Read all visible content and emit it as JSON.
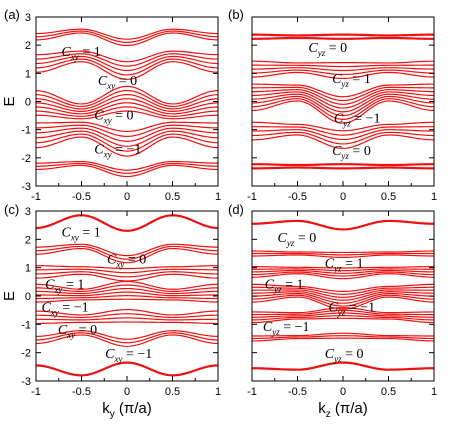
{
  "chart_data": [
    {
      "id": "a",
      "type": "line",
      "panel_label": "(a)",
      "xlabel": "",
      "ylabel": "E",
      "xlim": [
        -1,
        1
      ],
      "ylim": [
        -3,
        3
      ],
      "xticks": [
        "-1",
        "-0.5",
        "0",
        "0.5",
        "1"
      ],
      "yticks": [
        "3",
        "2",
        "1",
        "0",
        "-1",
        "-2",
        "-3"
      ],
      "series_color": "#ee1111",
      "bands": [
        {
          "x": [
            -1,
            -0.5,
            0,
            0.5,
            1
          ],
          "y": [
            2.3,
            2.5,
            2.1,
            2.5,
            2.3
          ],
          "width": 0.18,
          "lines": 3
        },
        {
          "x": [
            -1,
            -0.5,
            0,
            0.5,
            1
          ],
          "y": [
            1.35,
            1.6,
            1.1,
            1.6,
            1.35
          ],
          "width": 0.5,
          "lines": 5
        },
        {
          "x": [
            -1,
            -0.5,
            0,
            0.5,
            1
          ],
          "y": [
            -0.05,
            -0.35,
            0.1,
            -0.35,
            -0.05
          ],
          "width": 0.7,
          "lines": 7
        },
        {
          "x": [
            -1,
            -0.5,
            0,
            0.5,
            1
          ],
          "y": [
            -1.2,
            -1.0,
            -1.5,
            -1.0,
            -1.2
          ],
          "width": 0.7,
          "lines": 6
        },
        {
          "x": [
            -1,
            -0.5,
            0,
            0.5,
            1
          ],
          "y": [
            -2.3,
            -2.2,
            -2.55,
            -2.2,
            -2.3
          ],
          "width": 0.18,
          "lines": 3
        }
      ],
      "annotations": [
        {
          "sym": "C",
          "sub": "xy",
          "op": " = ",
          "val": "1",
          "x": -0.72,
          "y": 1.75
        },
        {
          "sym": "C",
          "sub": "xy",
          "op": " = ",
          "val": "0",
          "x": -0.32,
          "y": 0.72
        },
        {
          "sym": "C",
          "sub": "xy",
          "op": " = ",
          "val": "0",
          "x": -0.36,
          "y": -0.5
        },
        {
          "sym": "C",
          "sub": "xy",
          "op": " = ",
          "val": "−1",
          "x": -0.36,
          "y": -1.7
        }
      ]
    },
    {
      "id": "b",
      "type": "line",
      "panel_label": "(b)",
      "xlabel": "",
      "ylabel": "",
      "xlim": [
        -1,
        1
      ],
      "ylim": [
        -3,
        3
      ],
      "xticks": [
        "-1",
        "-0.5",
        "0",
        "0.5",
        "1"
      ],
      "yticks": [],
      "series_color": "#ee1111",
      "bands": [
        {
          "x": [
            -1,
            -0.5,
            0,
            0.5,
            1
          ],
          "y": [
            2.3,
            2.3,
            2.3,
            2.3,
            2.3
          ],
          "width": 0.12,
          "lines": 2
        },
        {
          "x": [
            -1,
            -0.5,
            0,
            0.5,
            1
          ],
          "y": [
            1.15,
            1.2,
            1.1,
            1.2,
            1.15
          ],
          "width": 0.45,
          "lines": 5
        },
        {
          "x": [
            -1,
            -0.5,
            0,
            0.5,
            1
          ],
          "y": [
            0.15,
            0.3,
            -0.3,
            0.3,
            0.15
          ],
          "width": 0.75,
          "lines": 8
        },
        {
          "x": [
            -1,
            -0.5,
            0,
            0.5,
            1
          ],
          "y": [
            -1.05,
            -1.0,
            -1.35,
            -1.0,
            -1.05
          ],
          "width": 0.5,
          "lines": 5
        },
        {
          "x": [
            -1,
            -0.5,
            0,
            0.5,
            1
          ],
          "y": [
            -2.3,
            -2.3,
            -2.3,
            -2.3,
            -2.3
          ],
          "width": 0.12,
          "lines": 2
        }
      ],
      "annotations": [
        {
          "sym": "C",
          "sub": "yz",
          "op": " = ",
          "val": "0",
          "x": -0.38,
          "y": 1.9
        },
        {
          "sym": "C",
          "sub": "yz",
          "op": " = ",
          "val": "1",
          "x": -0.12,
          "y": 0.8
        },
        {
          "sym": "C",
          "sub": "yz",
          "op": " = ",
          "val": "−1",
          "x": -0.1,
          "y": -0.6
        },
        {
          "sym": "C",
          "sub": "yz",
          "op": " = ",
          "val": "0",
          "x": -0.12,
          "y": -1.75
        }
      ]
    },
    {
      "id": "c",
      "type": "line",
      "panel_label": "(c)",
      "xlabel": "k_y (π/a)",
      "ylabel": "E",
      "xlim": [
        -1,
        1
      ],
      "ylim": [
        -3,
        3
      ],
      "xticks": [
        "-1",
        "-0.5",
        "0",
        "0.5",
        "1"
      ],
      "yticks": [
        "3",
        "2",
        "1",
        "0",
        "-1",
        "-2",
        "-3"
      ],
      "series_color": "#ee1111",
      "bands": [
        {
          "x": [
            -1,
            -0.5,
            0,
            0.5,
            1
          ],
          "y": [
            2.4,
            2.85,
            2.3,
            2.85,
            2.4
          ],
          "width": 0.06,
          "lines": 1
        },
        {
          "x": [
            -1,
            -0.5,
            0,
            0.5,
            1
          ],
          "y": [
            1.6,
            1.75,
            1.3,
            1.75,
            1.6
          ],
          "width": 0.2,
          "lines": 3
        },
        {
          "x": [
            -1,
            -0.5,
            0,
            0.5,
            1
          ],
          "y": [
            0.85,
            0.9,
            0.75,
            0.9,
            0.85
          ],
          "width": 0.35,
          "lines": 4
        },
        {
          "x": [
            -1,
            -0.5,
            0,
            0.5,
            1
          ],
          "y": [
            0.1,
            0.05,
            0.2,
            0.05,
            0.1
          ],
          "width": 0.5,
          "lines": 6
        },
        {
          "x": [
            -1,
            -0.5,
            0,
            0.5,
            1
          ],
          "y": [
            -0.75,
            -0.8,
            -0.7,
            -0.8,
            -0.75
          ],
          "width": 0.35,
          "lines": 4
        },
        {
          "x": [
            -1,
            -0.5,
            0,
            0.5,
            1
          ],
          "y": [
            -1.55,
            -1.3,
            -1.65,
            -1.3,
            -1.55
          ],
          "width": 0.2,
          "lines": 3
        },
        {
          "x": [
            -1,
            -0.5,
            0,
            0.5,
            1
          ],
          "y": [
            -2.45,
            -2.8,
            -2.35,
            -2.8,
            -2.45
          ],
          "width": 0.06,
          "lines": 1
        }
      ],
      "annotations": [
        {
          "sym": "C",
          "sub": "xy",
          "op": " = ",
          "val": "1",
          "x": -0.72,
          "y": 2.25
        },
        {
          "sym": "C",
          "sub": "xy",
          "op": " = ",
          "val": "0",
          "x": -0.22,
          "y": 1.28
        },
        {
          "sym": "C",
          "sub": "xy",
          "op": " = ",
          "val": "1",
          "x": -0.9,
          "y": 0.4
        },
        {
          "sym": "C",
          "sub": "xy",
          "op": " = ",
          "val": "−1",
          "x": -0.94,
          "y": -0.4
        },
        {
          "sym": "C",
          "sub": "xy",
          "op": " = ",
          "val": "0",
          "x": -0.76,
          "y": -1.2
        },
        {
          "sym": "C",
          "sub": "xy",
          "op": " = ",
          "val": "−1",
          "x": -0.24,
          "y": -2.05
        }
      ]
    },
    {
      "id": "d",
      "type": "line",
      "panel_label": "(d)",
      "xlabel": "k_z (π/a)",
      "ylabel": "",
      "xlim": [
        -1,
        1
      ],
      "ylim": [
        -3,
        3
      ],
      "xticks": [
        "-1",
        "-0.5",
        "0",
        "0.5",
        "1"
      ],
      "yticks": [],
      "series_color": "#ee1111",
      "bands": [
        {
          "x": [
            -1,
            -0.5,
            0,
            0.5,
            1
          ],
          "y": [
            2.55,
            2.65,
            2.35,
            2.65,
            2.55
          ],
          "width": 0.06,
          "lines": 1
        },
        {
          "x": [
            -1,
            -0.5,
            0,
            0.5,
            1
          ],
          "y": [
            1.5,
            1.5,
            1.45,
            1.5,
            1.5
          ],
          "width": 0.14,
          "lines": 3
        },
        {
          "x": [
            -1,
            -0.5,
            0,
            0.5,
            1
          ],
          "y": [
            0.85,
            0.9,
            0.8,
            0.9,
            0.85
          ],
          "width": 0.3,
          "lines": 5
        },
        {
          "x": [
            -1,
            -0.5,
            0,
            0.5,
            1
          ],
          "y": [
            0.1,
            0.15,
            -0.15,
            0.15,
            0.1
          ],
          "width": 0.5,
          "lines": 7
        },
        {
          "x": [
            -1,
            -0.5,
            0,
            0.5,
            1
          ],
          "y": [
            -0.75,
            -0.7,
            -0.6,
            -0.7,
            -0.75
          ],
          "width": 0.3,
          "lines": 5
        },
        {
          "x": [
            -1,
            -0.5,
            0,
            0.5,
            1
          ],
          "y": [
            -1.5,
            -1.45,
            -1.4,
            -1.45,
            -1.5
          ],
          "width": 0.14,
          "lines": 3
        },
        {
          "x": [
            -1,
            -0.5,
            0,
            0.5,
            1
          ],
          "y": [
            -2.55,
            -2.6,
            -2.35,
            -2.6,
            -2.55
          ],
          "width": 0.06,
          "lines": 1
        }
      ],
      "annotations": [
        {
          "sym": "C",
          "sub": "yz",
          "op": " = ",
          "val": "0",
          "x": -0.72,
          "y": 2.05
        },
        {
          "sym": "C",
          "sub": "yz",
          "op": " = ",
          "val": "1",
          "x": -0.2,
          "y": 1.15
        },
        {
          "sym": "C",
          "sub": "yz",
          "op": " = ",
          "val": "1",
          "x": -0.86,
          "y": 0.4
        },
        {
          "sym": "C",
          "sub": "yz",
          "op": " = ",
          "val": "−1",
          "x": -0.16,
          "y": -0.4
        },
        {
          "sym": "C",
          "sub": "yz",
          "op": " = ",
          "val": "−1",
          "x": -0.88,
          "y": -1.1
        },
        {
          "sym": "C",
          "sub": "yz",
          "op": " = ",
          "val": "0",
          "x": -0.2,
          "y": -2.05
        }
      ]
    }
  ]
}
